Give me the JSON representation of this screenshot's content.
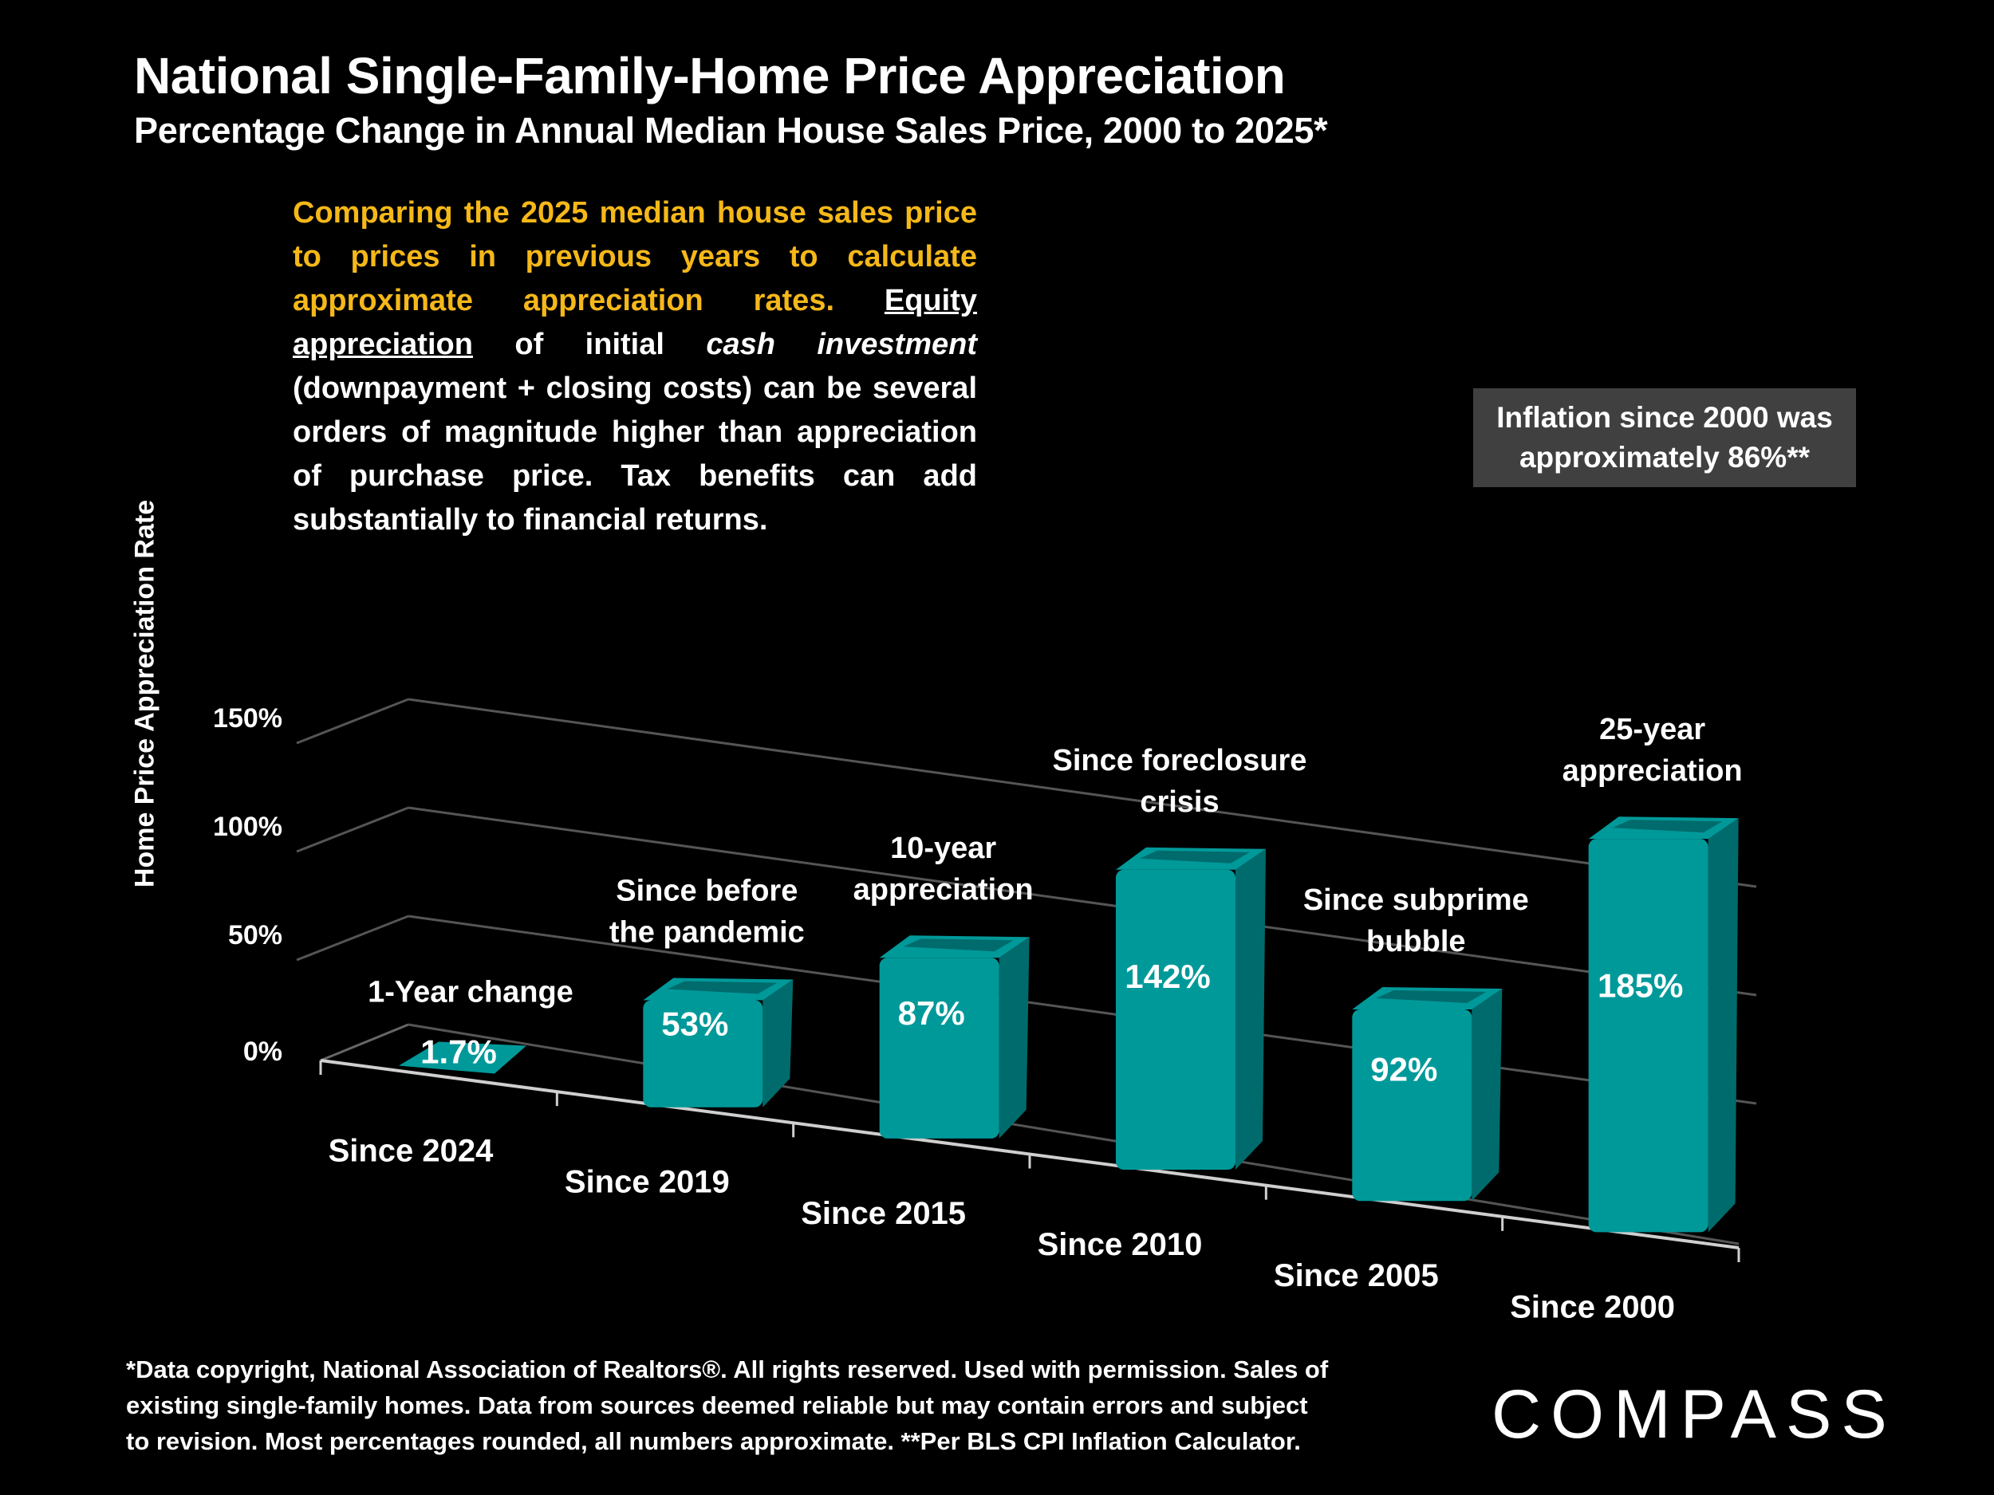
{
  "header": {
    "title": "National Single-Family-Home Price Appreciation",
    "subtitle": "Percentage Change in Annual Median House Sales Price, 2000 to 2025*"
  },
  "note": {
    "highlight": "Comparing the 2025 median house sales price to prices in previous years to calculate approximate appreciation rates.",
    "underlined": "Equity appreciation",
    "part1": " of initial ",
    "italic": "cash investment",
    "part2": " (downpayment + closing costs) can be several orders of magnitude higher than appreciation of purchase price. Tax benefits can add substantially to financial returns."
  },
  "inflation_callout": {
    "line1": "Inflation since 2000 was",
    "line2": "approximately 86%**"
  },
  "footer": {
    "line1": "*Data copyright, National Association of Realtors®. All rights reserved. Used with permission. Sales of",
    "line2": "existing single-family homes. Data from sources deemed reliable but may contain errors and subject",
    "line3": "to revision. Most percentages rounded, all numbers  approximate. **Per BLS CPI Inflation Calculator."
  },
  "brand": {
    "logo_text": "COMPASS"
  },
  "colors": {
    "bar": "#00999a",
    "bar_dark": "#006b6c",
    "accent_text": "#f5b819",
    "callout_bg": "#404040",
    "gridline": "#555555"
  },
  "chart_data": {
    "type": "bar",
    "style": "3d",
    "title": "National Single-Family-Home Price Appreciation",
    "subtitle": "Percentage Change in Annual Median House Sales Price, 2000 to 2025*",
    "xlabel": "",
    "ylabel": "Home Price Appreciation Rate",
    "ylim": [
      0,
      150
    ],
    "yticks": [
      0,
      50,
      100,
      150
    ],
    "ytick_labels": [
      "0%",
      "50%",
      "100%",
      "150%"
    ],
    "grid": true,
    "categories": [
      "Since 2024",
      "Since 2019",
      "Since 2015",
      "Since 2010",
      "Since 2005",
      "Since 2000"
    ],
    "values": [
      1.7,
      53,
      87,
      142,
      92,
      185
    ],
    "value_labels": [
      "1.7%",
      "53%",
      "87%",
      "142%",
      "92%",
      "185%"
    ],
    "annotations": [
      [
        "1-Year change"
      ],
      [
        "Since before",
        "the pandemic"
      ],
      [
        "10-year",
        "appreciation"
      ],
      [
        "Since foreclosure",
        "crisis"
      ],
      [
        "Since subprime",
        "bubble"
      ],
      [
        "25-year",
        "appreciation"
      ]
    ]
  }
}
